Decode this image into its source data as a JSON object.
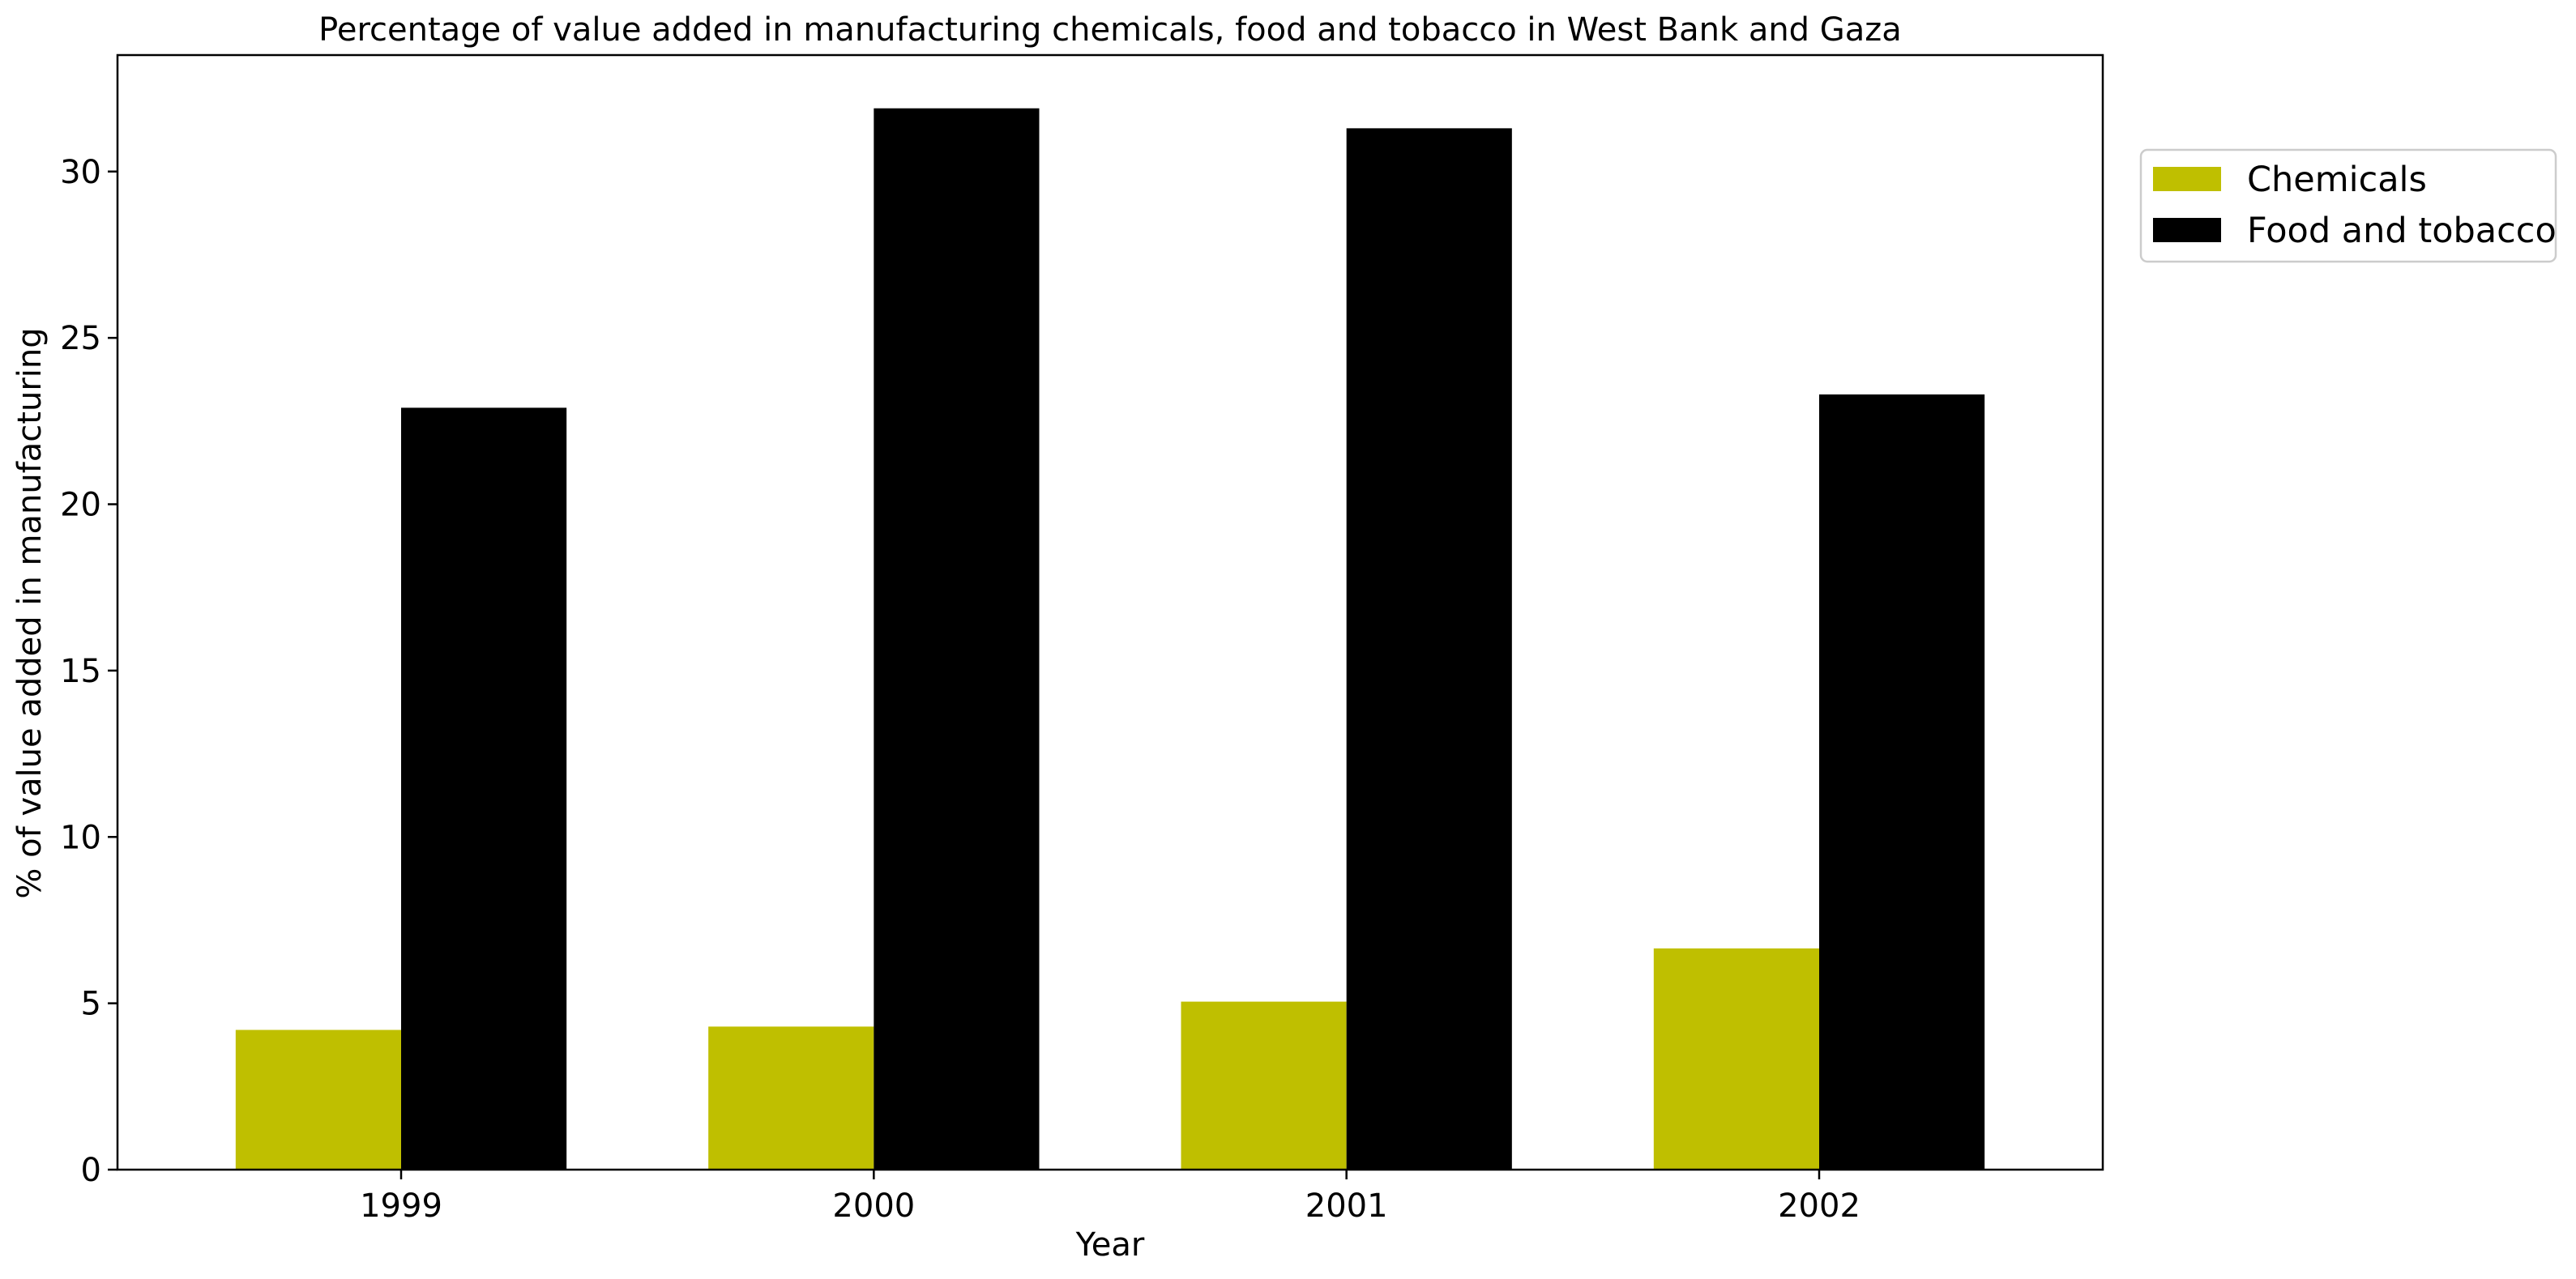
{
  "chart_data": {
    "type": "bar",
    "title": "Percentage of value added in manufacturing chemicals, food and tobacco in West Bank and Gaza",
    "xlabel": "Year",
    "ylabel": "% of value added in manufacturing",
    "categories": [
      "1999",
      "2000",
      "2001",
      "2002"
    ],
    "series": [
      {
        "name": "Chemicals",
        "color": "#bfbf00",
        "values": [
          4.2,
          4.3,
          5.05,
          6.65
        ]
      },
      {
        "name": "Food and tobacco",
        "color": "#000000",
        "values": [
          22.9,
          31.9,
          31.3,
          23.3
        ]
      }
    ],
    "ylim": [
      0,
      33.5
    ],
    "yticks": [
      "0",
      "5",
      "10",
      "15",
      "20",
      "25",
      "30"
    ],
    "grid": false,
    "legend_position": "outside-top-right"
  }
}
